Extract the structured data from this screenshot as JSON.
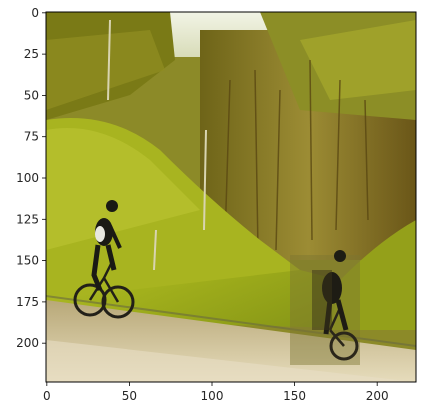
{
  "plot": {
    "x_ticks": [
      "0",
      "50",
      "100",
      "150",
      "200"
    ],
    "y_ticks": [
      "0",
      "25",
      "50",
      "75",
      "100",
      "125",
      "150",
      "175",
      "200"
    ],
    "x_tick_values": [
      0,
      50,
      100,
      150,
      200
    ],
    "y_tick_values": [
      0,
      25,
      50,
      75,
      100,
      125,
      150,
      175,
      200
    ],
    "xlim": [
      -0.5,
      223.5
    ],
    "ylim": [
      223.5,
      -0.5
    ],
    "image_size": [
      224,
      224
    ]
  },
  "image": {
    "subject": "two cyclists on a road beside a green grassy hillside with autumn trees",
    "colors": {
      "sky": "#e8ecd8",
      "grass_bright": "#a9b81e",
      "grass_dark": "#6e7d12",
      "trees_olive": "#8a7a2a",
      "trees_brown": "#5e4a18",
      "road": "#c8b88c",
      "road_light": "#e2d6b2",
      "rider": "#1a1a14",
      "jersey_white": "#e8e8e0"
    }
  }
}
